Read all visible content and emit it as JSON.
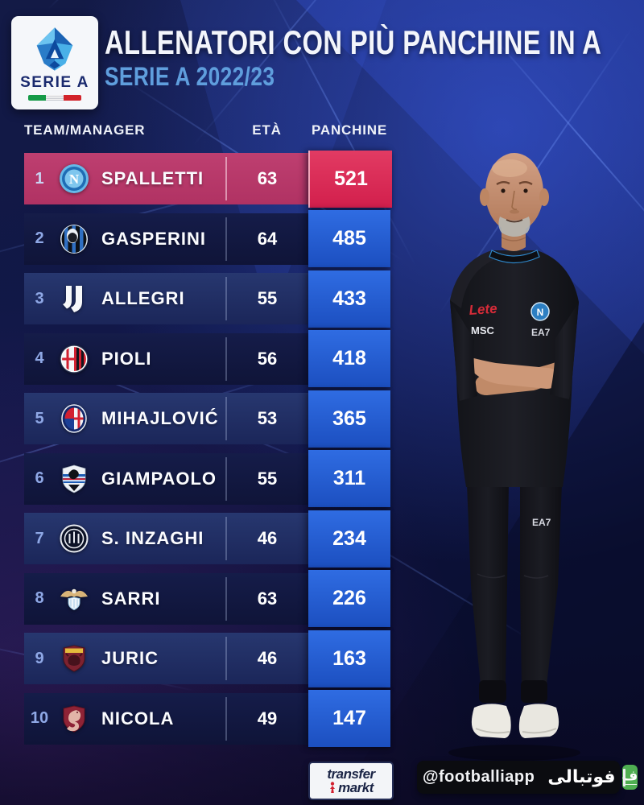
{
  "header": {
    "title": "ALLENATORI CON PIÙ PANCHINE IN A",
    "subtitle": "SERIE A 2022/23"
  },
  "league_badge": {
    "label": "SERIE A"
  },
  "chart_data": {
    "type": "table",
    "title": "ALLENATORI CON PIÙ PANCHINE IN A",
    "subtitle": "SERIE A 2022/23",
    "columns": [
      "TEAM/MANAGER",
      "ETÀ",
      "PANCHINE"
    ],
    "rows": [
      {
        "rank": 1,
        "team": "Napoli",
        "crest": "napoli",
        "manager": "SPALLETTI",
        "age": "63",
        "panchine": "521",
        "highlight": true
      },
      {
        "rank": 2,
        "team": "Atalanta",
        "crest": "atalanta",
        "manager": "GASPERINI",
        "age": "64",
        "panchine": "485",
        "highlight": false
      },
      {
        "rank": 3,
        "team": "Juventus",
        "crest": "juventus",
        "manager": "ALLEGRI",
        "age": "55",
        "panchine": "433",
        "highlight": false
      },
      {
        "rank": 4,
        "team": "Milan",
        "crest": "milan",
        "manager": "PIOLI",
        "age": "56",
        "panchine": "418",
        "highlight": false
      },
      {
        "rank": 5,
        "team": "Bologna",
        "crest": "bologna",
        "manager": "MIHAJLOVIĆ",
        "age": "53",
        "panchine": "365",
        "highlight": false
      },
      {
        "rank": 6,
        "team": "Sampdoria",
        "crest": "sampdoria",
        "manager": "GIAMPAOLO",
        "age": "55",
        "panchine": "311",
        "highlight": false
      },
      {
        "rank": 7,
        "team": "Inter",
        "crest": "inter",
        "manager": "S. INZAGHI",
        "age": "46",
        "panchine": "234",
        "highlight": false
      },
      {
        "rank": 8,
        "team": "Lazio",
        "crest": "lazio",
        "manager": "SARRI",
        "age": "63",
        "panchine": "226",
        "highlight": false
      },
      {
        "rank": 9,
        "team": "Torino",
        "crest": "torino",
        "manager": "JURIC",
        "age": "46",
        "panchine": "163",
        "highlight": false
      },
      {
        "rank": 10,
        "team": "Salernitana",
        "crest": "salernitana",
        "manager": "NICOLA",
        "age": "49",
        "panchine": "147",
        "highlight": false
      }
    ]
  },
  "photo": {
    "subject": "Luciano Spalletti",
    "sponsor_lete": "Lete",
    "sponsor_msc": "MSC",
    "brand_ea7": "EA7",
    "crest_letter": "N",
    "pants_brand": "EA7"
  },
  "footer": {
    "transfermarkt": {
      "line1": "transfer",
      "line2": "markt"
    },
    "badge": {
      "handle": "@footballiapp",
      "brand": "فوتبالی",
      "icon_letter": "ف"
    }
  },
  "colors": {
    "background_navy": "#0d1340",
    "row_highlight": "#ba3a6c",
    "highlight_cell_red": "#d2234e",
    "cell_blue": "#2563d6",
    "subtitle_blue": "#5f9edd",
    "rank_blue": "#8fa8e6",
    "footballi_green": "#4fae52"
  }
}
